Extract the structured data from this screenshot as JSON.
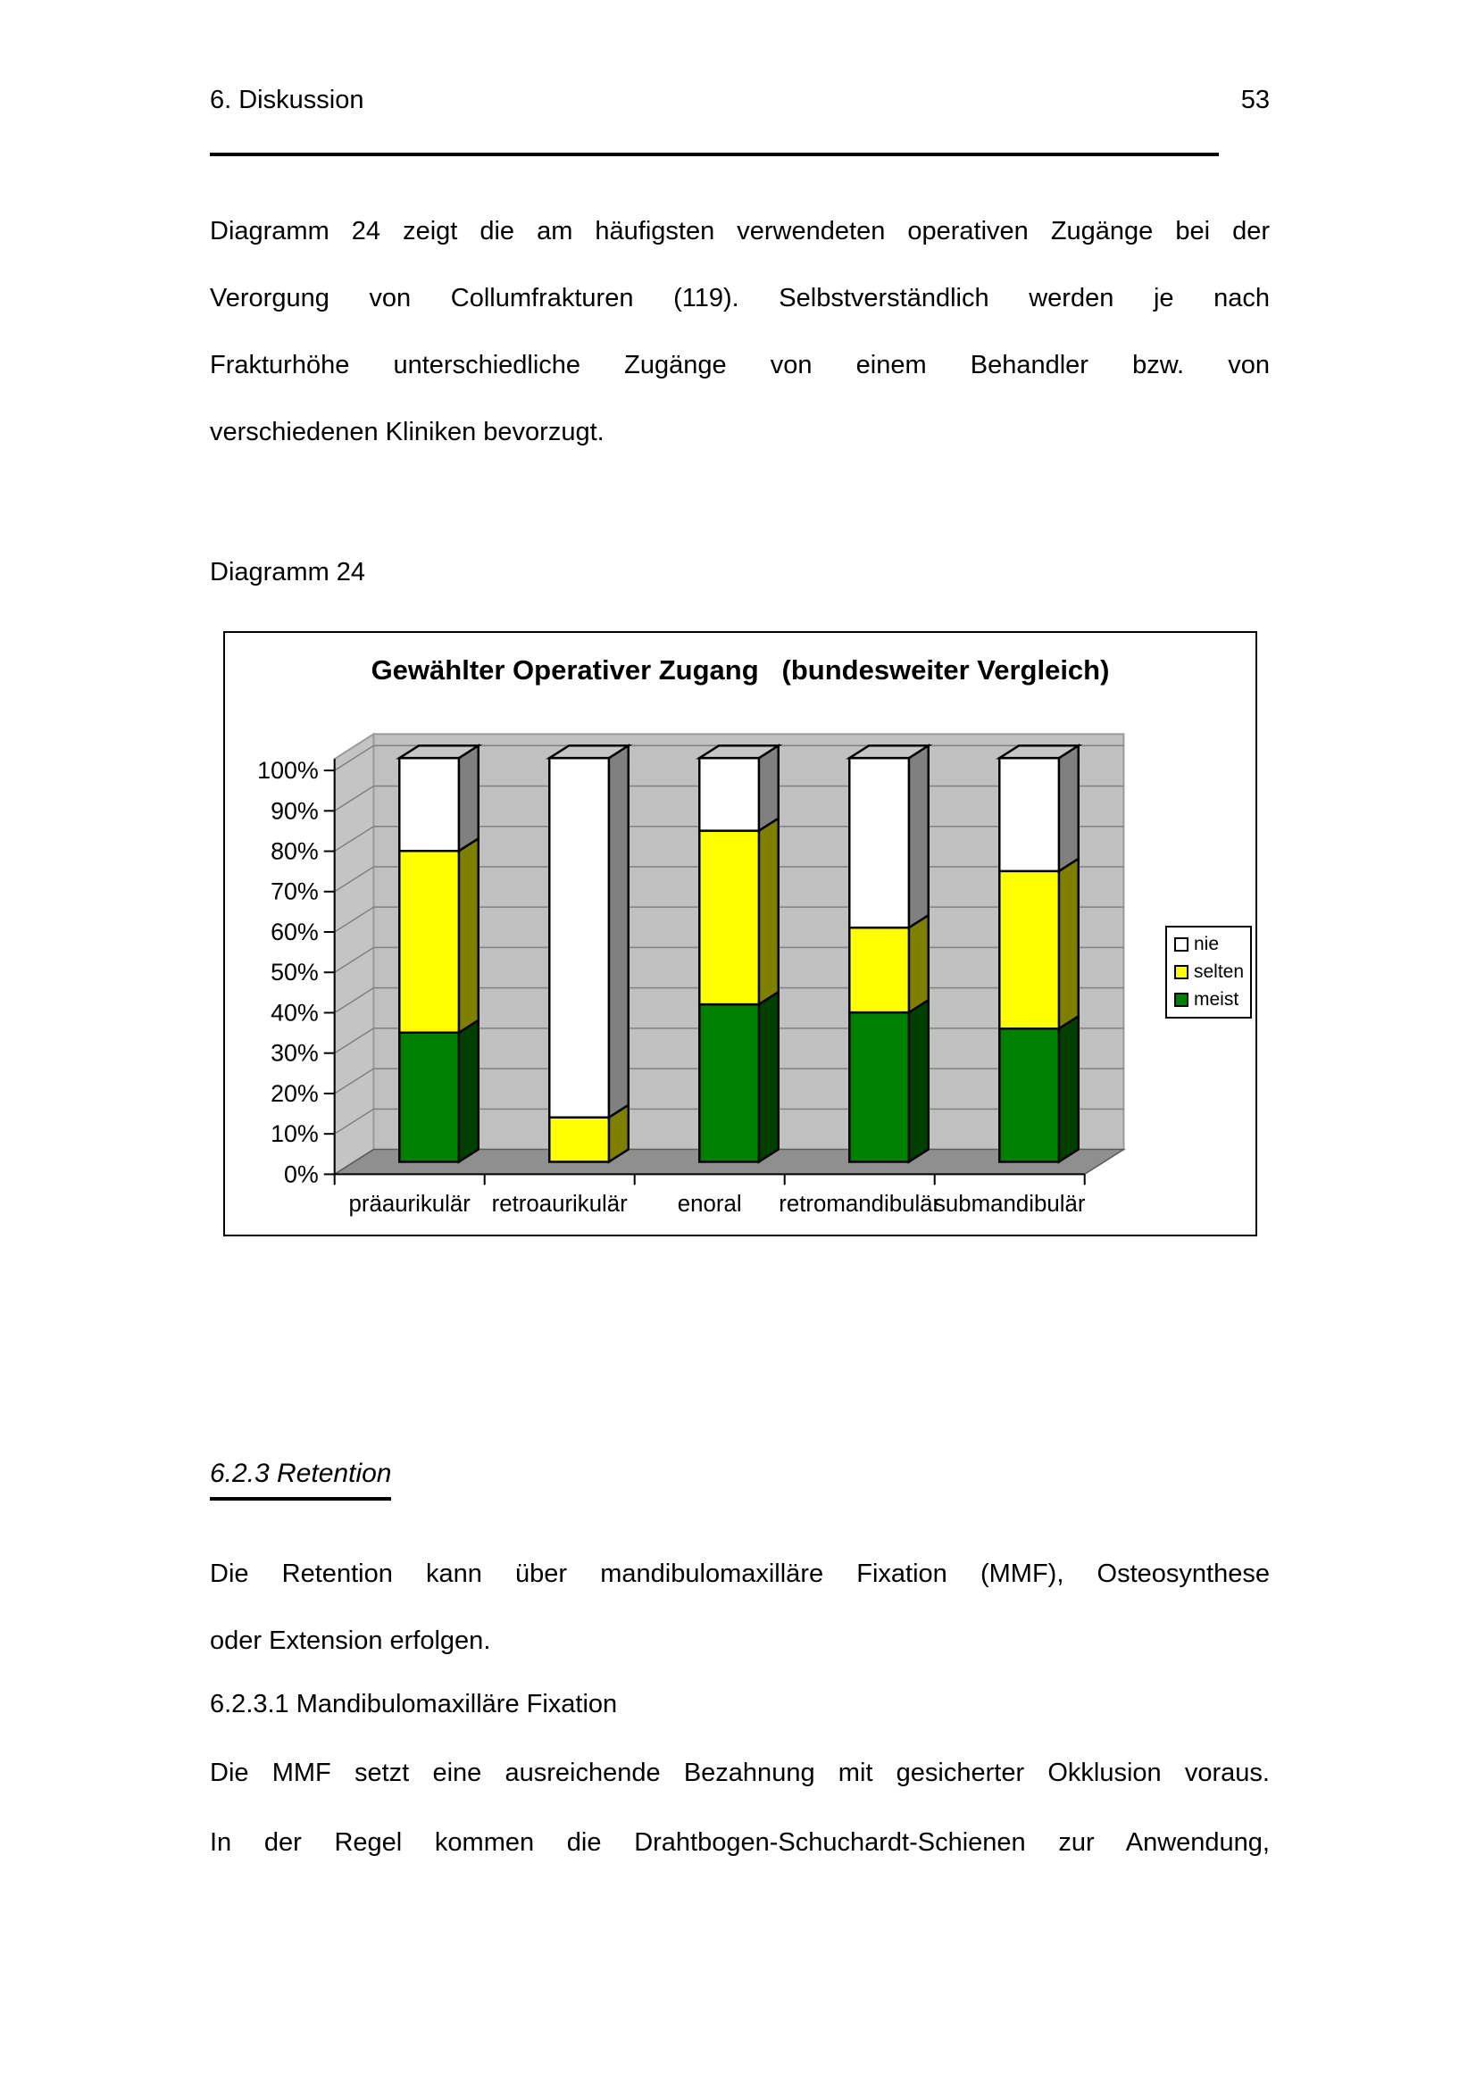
{
  "page": {
    "header": {
      "section": "6. Diskussion",
      "page_number": "53"
    },
    "paragraph1_lines": [
      "Diagramm 24 zeigt die am häufigsten verwendeten operativen Zugänge bei der",
      "Verorgung von Collumfrakturen (119). Selbstverständlich werden je nach",
      "Frakturhöhe unterschiedliche Zugänge von einem Behandler bzw. von",
      "verschiedenen Kliniken bevorzugt."
    ],
    "figure_label": "Diagramm 24",
    "section_heading": "6.2.3 Retention",
    "paragraph2_lines": [
      "Die Retention kann über mandibulomaxilläre Fixation (MMF), Osteosynthese",
      "oder Extension erfolgen."
    ],
    "subsection_heading": "6.2.3.1 Mandibulomaxilläre Fixation",
    "paragraph3_lines": [
      "Die MMF setzt eine ausreichende Bezahnung mit gesicherter Okklusion voraus."
    ],
    "paragraph4_lines": [
      "In der Regel kommen die Drahtbogen-Schuchardt-Schienen zur Anwendung,"
    ]
  },
  "chart_data": {
    "type": "bar",
    "subtype": "3d-100-percent-stacked-column",
    "title": "Gewählter Operativer Zugang   (bundesweiter Vergleich)",
    "categories": [
      "präaurikulär",
      "retroaurikulär",
      "enoral",
      "retromandibulär",
      "submandibulär"
    ],
    "series": [
      {
        "name": "meist",
        "color": "#008000",
        "side_color": "#004000",
        "values": [
          32,
          0,
          39,
          37,
          33
        ]
      },
      {
        "name": "selten",
        "color": "#FFFF00",
        "side_color": "#808000",
        "values": [
          45,
          11,
          43,
          21,
          39
        ]
      },
      {
        "name": "nie",
        "color": "#FFFFFF",
        "side_color": "#808080",
        "values": [
          23,
          89,
          18,
          42,
          28
        ]
      }
    ],
    "legend_items": [
      {
        "label": "nie",
        "color": "#FFFFFF"
      },
      {
        "label": "selten",
        "color": "#FFFF00"
      },
      {
        "label": "meist",
        "color": "#008000"
      }
    ],
    "legend_position": "right",
    "ylim": [
      0,
      100
    ],
    "y_tick_labels": [
      "0%",
      "10%",
      "20%",
      "30%",
      "40%",
      "50%",
      "60%",
      "70%",
      "80%",
      "90%",
      "100%"
    ],
    "grid": true,
    "top_face_color": "#c6c6c6",
    "wall_color": "#c0c0c0",
    "floor_color": "#8f8f8f",
    "gridline_color": "#808080"
  }
}
